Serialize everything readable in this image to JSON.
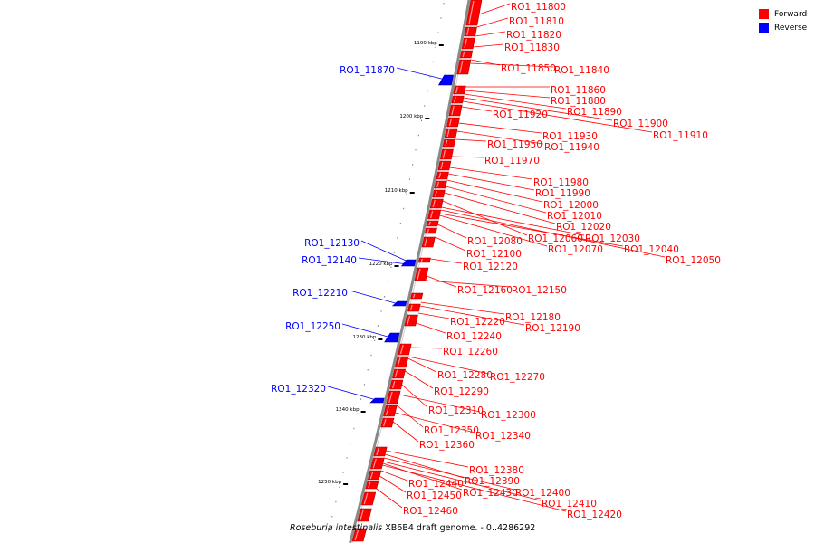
{
  "legend": [
    {
      "label": "Forward",
      "color": "#ff0000"
    },
    {
      "label": "Reverse",
      "color": "#0000ff"
    }
  ],
  "caption": {
    "species": "Roseburia intestinalis",
    "rest": " XB6B4 draft genome. - 0..4286292"
  },
  "colors": {
    "forward": "#ff0000",
    "reverse": "#0000ff",
    "backbone": "#8a8a8a"
  },
  "ticks": [
    "1190 kbp",
    "1200 kbp",
    "1210 kbp",
    "1220 kbp",
    "1230 kbp",
    "1240 kbp",
    "1250 kbp"
  ],
  "forward_genes": [
    "RO1_11800",
    "RO1_11810",
    "RO1_11820",
    "RO1_11830",
    "RO1_11850",
    "RO1_11840",
    "RO1_11860",
    "RO1_11880",
    "RO1_11890",
    "RO1_11920",
    "RO1_11900",
    "RO1_11910",
    "RO1_11930",
    "RO1_11950",
    "RO1_11940",
    "RO1_11970",
    "RO1_11980",
    "RO1_11990",
    "RO1_12000",
    "RO1_12010",
    "RO1_12020",
    "RO1_12060",
    "RO1_12030",
    "RO1_12080",
    "RO1_12070",
    "RO1_12040",
    "RO1_12100",
    "RO1_12050",
    "RO1_12120",
    "RO1_12160",
    "RO1_12150",
    "RO1_12180",
    "RO1_12220",
    "RO1_12190",
    "RO1_12240",
    "RO1_12260",
    "RO1_12280",
    "RO1_12270",
    "RO1_12290",
    "RO1_12310",
    "RO1_12300",
    "RO1_12350",
    "RO1_12340",
    "RO1_12360",
    "RO1_12380",
    "RO1_12390",
    "RO1_12440",
    "RO1_12430",
    "RO1_12400",
    "RO1_12450",
    "RO1_12410",
    "RO1_12460",
    "RO1_12420"
  ],
  "reverse_genes": [
    "RO1_11870",
    "RO1_12130",
    "RO1_12140",
    "RO1_12210",
    "RO1_12250",
    "RO1_12320"
  ]
}
